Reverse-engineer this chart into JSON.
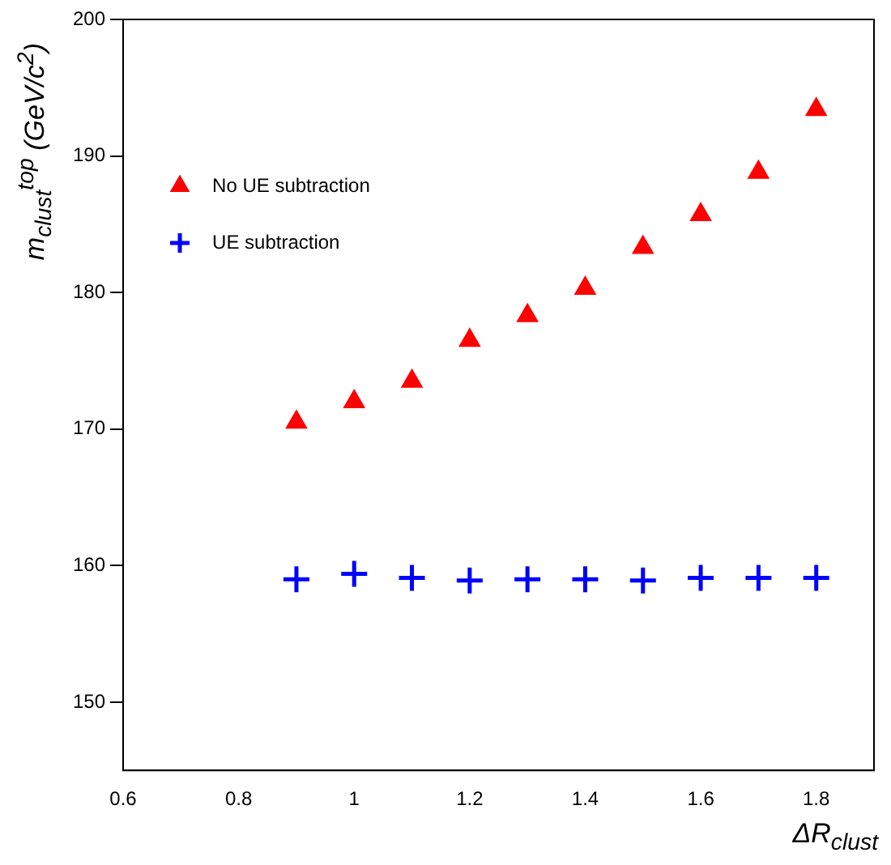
{
  "chart_data": {
    "type": "scatter",
    "xlabel": "ΔR$_{clust}$",
    "ylabel": "m$_{clust}$$^{top}$ (GeV/c$^{2}$)",
    "x": [
      0.9,
      1.0,
      1.1,
      1.2,
      1.3,
      1.4,
      1.5,
      1.6,
      1.7,
      1.8
    ],
    "series": [
      {
        "name": "No UE subtraction",
        "color": "#ff0000",
        "marker": "triangle",
        "values": [
          170.5,
          172.0,
          173.5,
          176.5,
          178.3,
          180.3,
          183.3,
          185.7,
          188.8,
          193.4
        ]
      },
      {
        "name": "UE subtraction",
        "color": "#0000ff",
        "marker": "cross",
        "values": [
          159.0,
          159.4,
          159.1,
          158.9,
          159.0,
          159.0,
          158.9,
          159.1,
          159.1,
          159.1
        ]
      }
    ],
    "xlim": [
      0.6,
      1.9
    ],
    "xticks": [
      0.6,
      0.8,
      1,
      1.2,
      1.4,
      1.6,
      1.8
    ],
    "ylim": [
      145,
      200
    ],
    "yticks": [
      150,
      160,
      170,
      180,
      190,
      200
    ],
    "grid": false,
    "legend": "top left"
  }
}
